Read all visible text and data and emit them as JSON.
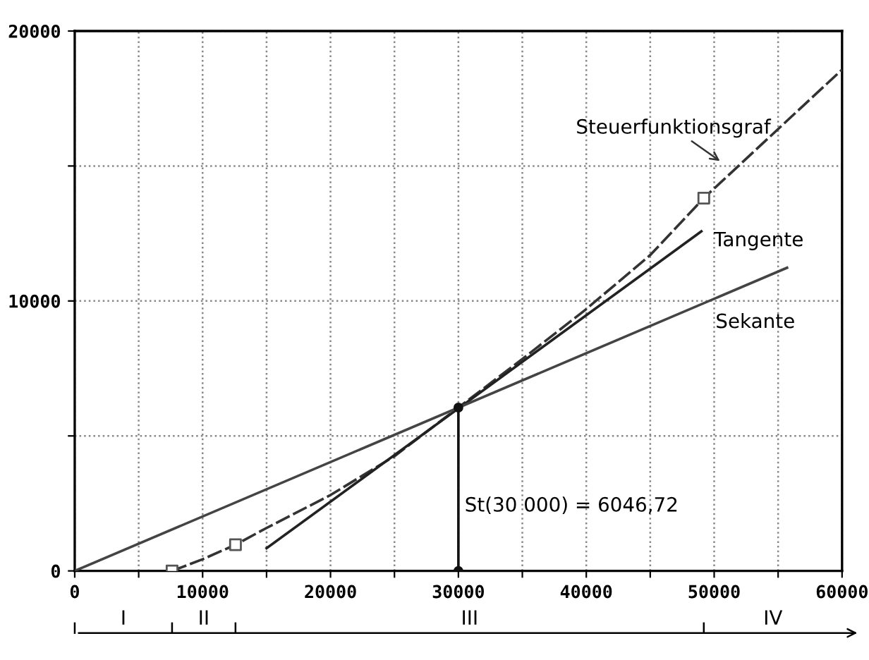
{
  "chart_data": {
    "type": "line",
    "series": [
      {
        "color": "#333333",
        "marker": "none",
        "line_style": "dashed",
        "x": [
          7610,
          10000,
          12570,
          15000,
          20000,
          25000,
          30000,
          35000,
          40000,
          45000,
          49190,
          60000
        ],
        "values": [
          0,
          430,
          970,
          1590,
          2810,
          4250,
          6050,
          7850,
          9700,
          11700,
          13810,
          18570
        ]
      },
      {
        "type": "scatter",
        "color": "#555555",
        "marker": "square",
        "x": [
          7610,
          12570,
          49190
        ],
        "values": [
          0,
          970,
          13810
        ]
      },
      {
        "type": "line",
        "color": "#222222",
        "marker": "none",
        "line_style": "solid",
        "x": [
          15000,
          49000
        ],
        "values": [
          840,
          12580
        ]
      },
      {
        "type": "line",
        "color": "#444444",
        "marker": "none",
        "line_style": "solid",
        "x": [
          0,
          55700
        ],
        "values": [
          0,
          11230
        ]
      },
      {
        "type": "line",
        "color": "#111111",
        "marker": "circle",
        "line_style": "solid",
        "x": [
          30000,
          30000
        ],
        "values": [
          0,
          6050
        ]
      }
    ],
    "xlim": [
      0,
      60000
    ],
    "ylim": [
      0,
      20000
    ],
    "xticks": [
      0,
      {
        "value": 5000,
        "label": null
      },
      10000,
      {
        "value": 15000,
        "label": null
      },
      20000,
      {
        "value": 25000,
        "label": null
      },
      30000,
      {
        "value": 35000,
        "label": null
      },
      40000,
      {
        "value": 45000,
        "label": null
      },
      50000,
      {
        "value": 55000,
        "label": null
      },
      60000
    ],
    "yticks": [
      0,
      {
        "value": 5000,
        "label": null
      },
      10000,
      {
        "value": 15000,
        "label": null
      },
      20000
    ],
    "grid": true,
    "annotations": [
      "Steuerfunktionsgraf",
      {
        "text": "Tangente",
        "x": 49000,
        "y": 12580
      },
      "Sekante",
      {
        "text": "St(30 000) = 6046,72",
        "x": 30000,
        "y": 2400
      },
      "I",
      "II",
      "III",
      "IV"
    ]
  }
}
